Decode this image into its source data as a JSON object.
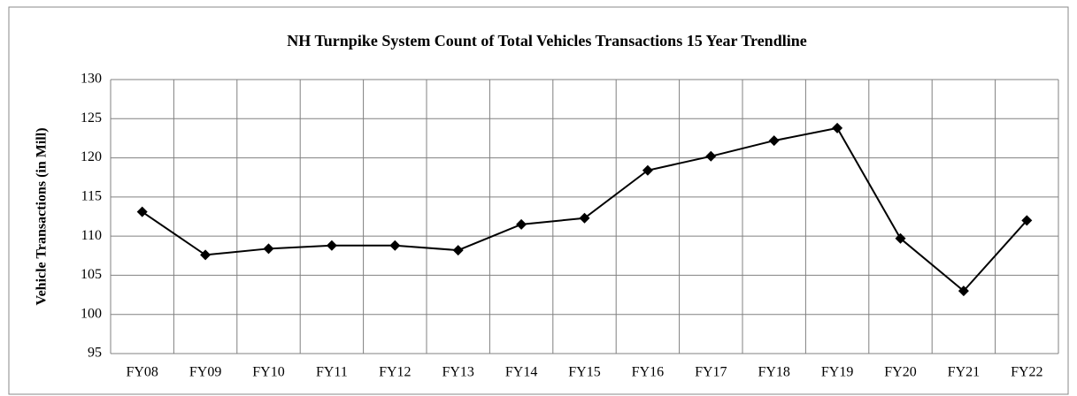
{
  "chart_data": {
    "type": "line",
    "title": "NH Turnpike  System Count  of Total Vehicles Transactions  15 Year Trendline",
    "y_label": "Vehicle Transactions (in Mill)",
    "categories": [
      "FY08",
      "FY09",
      "FY10",
      "FY11",
      "FY12",
      "FY13",
      "FY14",
      "FY15",
      "FY16",
      "FY17",
      "FY18",
      "FY19",
      "FY20",
      "FY21",
      "FY22"
    ],
    "series": [
      {
        "name": "Vehicle Transactions",
        "color": "#000000",
        "values": [
          113.1,
          107.6,
          108.4,
          108.8,
          108.8,
          108.2,
          111.5,
          112.3,
          118.4,
          120.2,
          122.2,
          123.8,
          109.7,
          103.0,
          112.0
        ]
      }
    ],
    "ylim": [
      95,
      130
    ],
    "yticks": [
      95,
      100,
      105,
      110,
      115,
      120,
      125,
      130
    ],
    "grid": true
  }
}
